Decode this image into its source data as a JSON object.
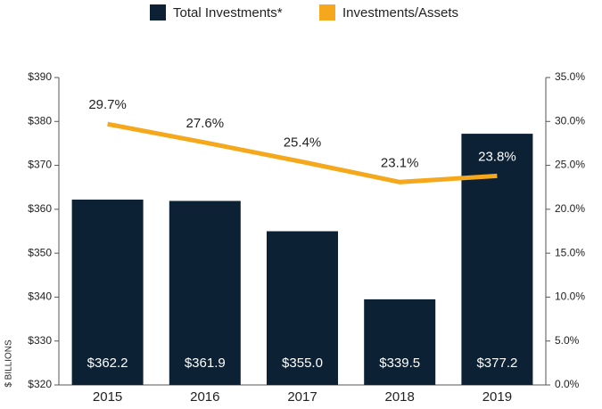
{
  "chart_data": {
    "type": "bar_line",
    "categories": [
      "2015",
      "2016",
      "2017",
      "2018",
      "2019"
    ],
    "series": [
      {
        "name": "Total Investments*",
        "color": "#0c2134",
        "values": [
          362.2,
          361.9,
          355.0,
          339.5,
          377.2
        ],
        "value_labels": [
          "$362.2",
          "$361.9",
          "$355.0",
          "$339.5",
          "$377.2"
        ]
      },
      {
        "name": "Investments/Assets",
        "color": "#f5a81c",
        "axis": "y2",
        "values": [
          29.7,
          27.6,
          25.4,
          23.1,
          23.8
        ],
        "value_labels": [
          "29.7%",
          "27.6%",
          "25.4%",
          "23.1%",
          "23.8%"
        ]
      }
    ],
    "y_label": "$ BILLIONS",
    "ylim": [
      320,
      390
    ],
    "yticks": [
      {
        "value": 320,
        "label": "$320"
      },
      {
        "value": 330,
        "label": "$330"
      },
      {
        "value": 340,
        "label": "$340"
      },
      {
        "value": 350,
        "label": "$350"
      },
      {
        "value": 360,
        "label": "$360"
      },
      {
        "value": 370,
        "label": "$370"
      },
      {
        "value": 380,
        "label": "$380"
      },
      {
        "value": 390,
        "label": "$390"
      }
    ],
    "y2lim": [
      0,
      35
    ],
    "y2ticks": [
      {
        "value": 0,
        "label": "0.0%"
      },
      {
        "value": 5,
        "label": "5.0%"
      },
      {
        "value": 10,
        "label": "10.0%"
      },
      {
        "value": 15,
        "label": "15.0%"
      },
      {
        "value": 20,
        "label": "20.0%"
      },
      {
        "value": 25,
        "label": "25.0%"
      },
      {
        "value": 30,
        "label": "30.0%"
      },
      {
        "value": 35,
        "label": "35.0%"
      }
    ],
    "legend": "top"
  }
}
